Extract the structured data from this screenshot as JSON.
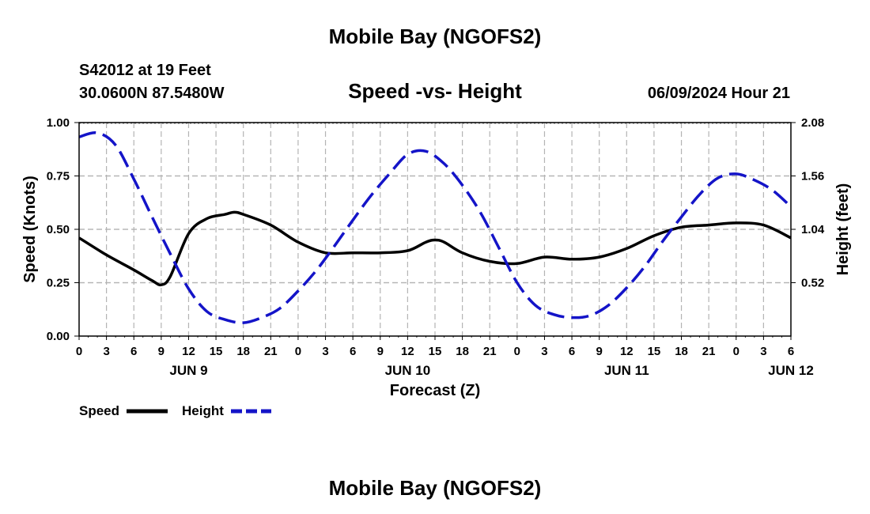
{
  "page": {
    "title": "Mobile Bay (NGOFS2)",
    "bottom_title": "Mobile Bay (NGOFS2)",
    "station_line": "S42012 at 19 Feet",
    "coord_line": "30.0600N  87.5480W",
    "datetime": "06/09/2024 Hour 21"
  },
  "chart_data": {
    "type": "line",
    "title": "Speed -vs- Height",
    "xlabel": "Forecast (Z)",
    "ylabel_left": "Speed (Knots)",
    "ylabel_right": "Height (feet)",
    "x_range_hours": [
      0,
      78
    ],
    "ylim_left": [
      0,
      1.0
    ],
    "ylim_right": [
      0,
      2.08
    ],
    "yticks_left": [
      "1.00",
      "0.75",
      "0.50",
      "0.25",
      "0.00"
    ],
    "yticks_right": [
      "2.08",
      "1.56",
      "1.04",
      "0.52"
    ],
    "xtick_labels": [
      "0",
      "3",
      "6",
      "9",
      "12",
      "15",
      "18",
      "21",
      "0",
      "3",
      "6",
      "9",
      "12",
      "15",
      "18",
      "21",
      "0",
      "3",
      "6",
      "9",
      "12",
      "15",
      "18",
      "21",
      "0",
      "3",
      "6"
    ],
    "day_labels": [
      {
        "label": "JUN 9",
        "hour": 12
      },
      {
        "label": "JUN 10",
        "hour": 36
      },
      {
        "label": "JUN 11",
        "hour": 60
      },
      {
        "label": "JUN 12",
        "hour": 78
      }
    ],
    "grid": true,
    "series": [
      {
        "name": "Speed",
        "axis": "left",
        "color": "#000000",
        "style": "solid",
        "x": [
          0,
          3,
          6,
          8,
          9,
          10,
          12,
          14,
          16,
          17,
          18,
          21,
          24,
          27,
          30,
          33,
          36,
          38,
          39,
          40,
          42,
          45,
          48,
          51,
          54,
          57,
          60,
          63,
          66,
          69,
          72,
          75,
          78
        ],
        "values": [
          0.46,
          0.38,
          0.31,
          0.26,
          0.24,
          0.28,
          0.48,
          0.55,
          0.57,
          0.58,
          0.57,
          0.52,
          0.44,
          0.39,
          0.39,
          0.39,
          0.4,
          0.44,
          0.45,
          0.44,
          0.39,
          0.35,
          0.34,
          0.37,
          0.36,
          0.37,
          0.41,
          0.47,
          0.51,
          0.52,
          0.53,
          0.52,
          0.46
        ]
      },
      {
        "name": "Height",
        "axis": "right",
        "color": "#1414c8",
        "style": "dashed",
        "x": [
          0,
          2,
          4,
          6,
          8,
          10,
          12,
          14,
          16,
          18,
          20,
          22,
          24,
          26,
          28,
          30,
          32,
          34,
          36,
          38,
          40,
          42,
          44,
          46,
          48,
          50,
          52,
          54,
          56,
          58,
          60,
          62,
          64,
          66,
          68,
          70,
          72,
          74,
          76,
          78
        ],
        "values": [
          1.94,
          1.98,
          1.86,
          1.53,
          1.16,
          0.8,
          0.46,
          0.24,
          0.16,
          0.13,
          0.18,
          0.27,
          0.44,
          0.64,
          0.88,
          1.13,
          1.37,
          1.58,
          1.77,
          1.8,
          1.68,
          1.47,
          1.2,
          0.86,
          0.52,
          0.3,
          0.21,
          0.18,
          0.2,
          0.3,
          0.47,
          0.68,
          0.93,
          1.16,
          1.38,
          1.54,
          1.58,
          1.52,
          1.42,
          1.26
        ]
      }
    ],
    "legend": [
      {
        "label": "Speed",
        "color": "#000000",
        "style": "solid"
      },
      {
        "label": "Height",
        "color": "#1414c8",
        "style": "dashed"
      }
    ]
  }
}
